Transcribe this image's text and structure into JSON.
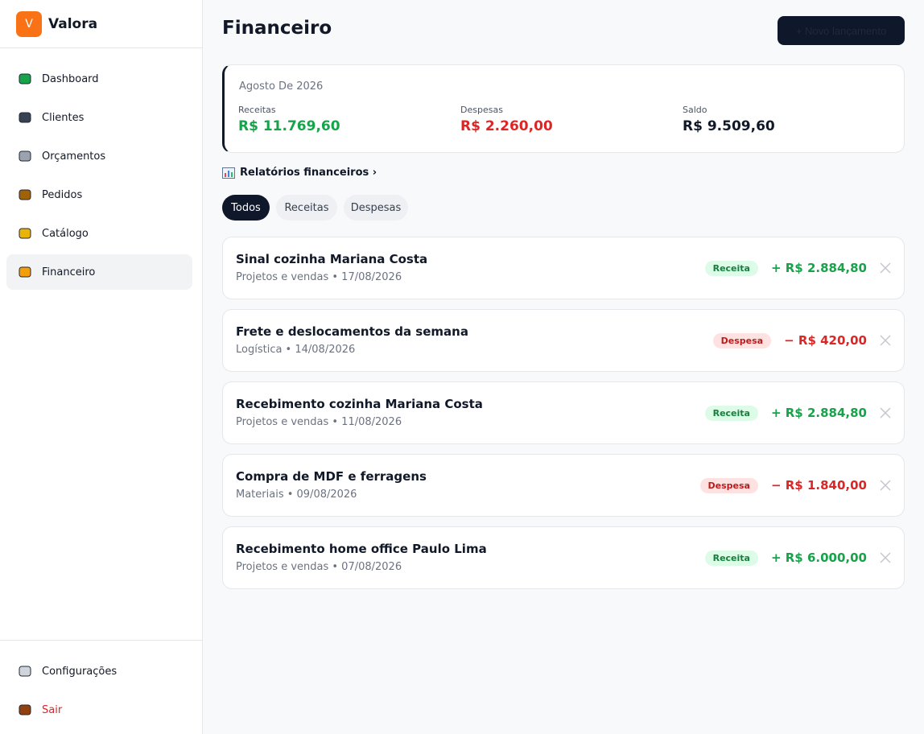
{
  "sidebar": {
    "brand": {
      "logo": "V",
      "name": "Valora"
    },
    "nav": [
      {
        "label": "Dashboard"
      },
      {
        "label": "Clientes"
      },
      {
        "label": "Orçamentos"
      },
      {
        "label": "Pedidos"
      },
      {
        "label": "Catálogo"
      },
      {
        "label": "Financeiro"
      }
    ],
    "footer": [
      {
        "label": "Configurações"
      },
      {
        "label": "Sair"
      }
    ]
  },
  "header": {
    "title": "Financeiro",
    "button": "+ Novo lançamento"
  },
  "summary": {
    "period": "Agosto De 2026",
    "items": [
      {
        "label": "Receitas",
        "value": "R$ 11.769,60"
      },
      {
        "label": "Despesas",
        "value": "R$ 2.260,00"
      },
      {
        "label": "Saldo",
        "value": "R$ 9.509,60"
      }
    ]
  },
  "reports_link": "Relatórios financeiros ›",
  "tabs": [
    "Todos",
    "Receitas",
    "Despesas"
  ],
  "transactions": [
    {
      "title": "Sinal cozinha Mariana Costa",
      "meta": "Projetos e vendas • 17/08/2026",
      "type": "Receita",
      "amount": "+ R$ 2.884,80"
    },
    {
      "title": "Frete e deslocamentos da semana",
      "meta": "Logística • 14/08/2026",
      "type": "Despesa",
      "amount": "− R$ 420,00"
    },
    {
      "title": "Recebimento cozinha Mariana Costa",
      "meta": "Projetos e vendas • 11/08/2026",
      "type": "Receita",
      "amount": "+ R$ 2.884,80"
    },
    {
      "title": "Compra de MDF e ferragens",
      "meta": "Materiais • 09/08/2026",
      "type": "Despesa",
      "amount": "− R$ 1.840,00"
    },
    {
      "title": "Recebimento home office Paulo Lima",
      "meta": "Projetos e vendas • 07/08/2026",
      "type": "Receita",
      "amount": "+ R$ 6.000,00"
    }
  ]
}
